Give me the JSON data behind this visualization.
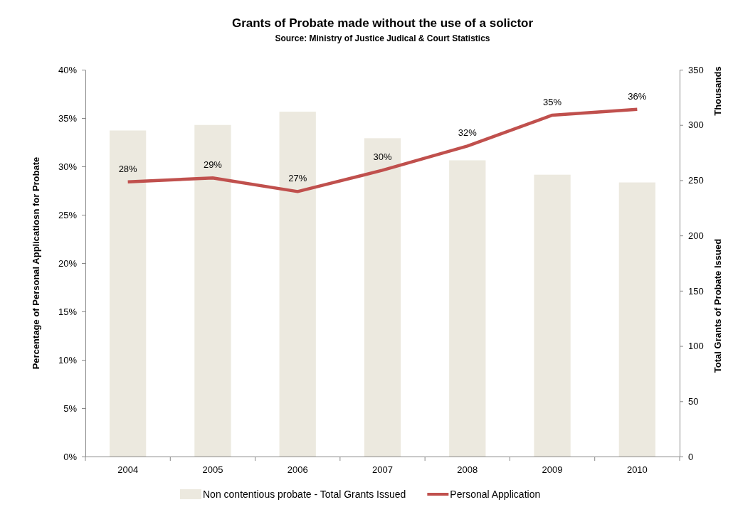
{
  "chart_data": {
    "type": "bar",
    "title": "Grants of Probate made without the use of a solictor",
    "subtitle": "Source: Ministry of Justice Judical & Court Statistics",
    "ylabel": "Percentage of Personal Applicatiosn for Probate",
    "y2label": "Total Grants of Probate Issued",
    "annotations": [
      "Thousands"
    ],
    "categories": [
      "2004",
      "2005",
      "2006",
      "2007",
      "2008",
      "2009",
      "2010"
    ],
    "series": [
      {
        "name": "Non contentious probate - Total Grants Issued",
        "axis": "y2",
        "color": "#ece9df",
        "values": [
          295,
          300,
          312,
          288,
          268,
          255,
          248
        ]
      },
      {
        "name": "Personal Application",
        "type": "line",
        "axis": "y",
        "color": "#c0504d",
        "values": [
          28.4,
          28.8,
          27.4,
          29.6,
          32.1,
          35.3,
          35.9
        ],
        "value_labels": [
          "28%",
          "29%",
          "27%",
          "30%",
          "32%",
          "35%",
          "36%"
        ]
      }
    ],
    "ylim": [
      0,
      40
    ],
    "yticks": [
      {
        "value": 0,
        "label": "0%"
      },
      {
        "value": 5,
        "label": "5%"
      },
      {
        "value": 10,
        "label": "10%"
      },
      {
        "value": 15,
        "label": "15%"
      },
      {
        "value": 20,
        "label": "20%"
      },
      {
        "value": 25,
        "label": "25%"
      },
      {
        "value": 30,
        "label": "30%"
      },
      {
        "value": 35,
        "label": "35%"
      },
      {
        "value": 40,
        "label": "40%"
      }
    ],
    "y2lim": [
      0,
      350
    ],
    "y2ticks": [
      0,
      50,
      100,
      150,
      200,
      250,
      300,
      350
    ],
    "grid": false,
    "legend": "bottom",
    "marker": "none",
    "line_style": "solid"
  }
}
